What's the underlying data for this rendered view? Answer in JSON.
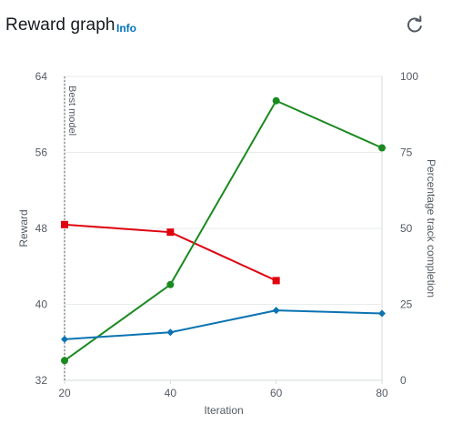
{
  "header": {
    "title": "Reward graph",
    "info_label": "Info",
    "refresh_icon": "refresh-icon"
  },
  "chart_data": {
    "type": "line",
    "title": "",
    "xlabel": "Iteration",
    "ylabel_left": "Reward",
    "ylabel_right": "Percentage track completion",
    "x_ticks": [
      20,
      40,
      60,
      80
    ],
    "y_left_ticks": [
      32,
      40,
      48,
      56,
      64
    ],
    "y_right_ticks": [
      0,
      25,
      50,
      75,
      100
    ],
    "xlim": [
      20,
      80
    ],
    "ylim_left": [
      32,
      64
    ],
    "ylim_right": [
      0,
      100
    ],
    "grid": "horizontal",
    "annotation": {
      "label": "Best model",
      "x": 20
    },
    "series": [
      {
        "axis": "left",
        "color": "#e0000e",
        "marker": "square",
        "x": [
          20,
          40,
          60
        ],
        "values": [
          48.4,
          47.6,
          42.5
        ]
      },
      {
        "axis": "right",
        "color": "#1a8a20",
        "marker": "circle",
        "x": [
          20,
          40,
          60,
          80
        ],
        "values": [
          6.5,
          31.5,
          92,
          76.5
        ]
      },
      {
        "axis": "right",
        "color": "#0b73b2",
        "marker": "diamond",
        "x": [
          20,
          40,
          60,
          80
        ],
        "values": [
          13.5,
          15.8,
          23,
          22
        ]
      }
    ]
  }
}
